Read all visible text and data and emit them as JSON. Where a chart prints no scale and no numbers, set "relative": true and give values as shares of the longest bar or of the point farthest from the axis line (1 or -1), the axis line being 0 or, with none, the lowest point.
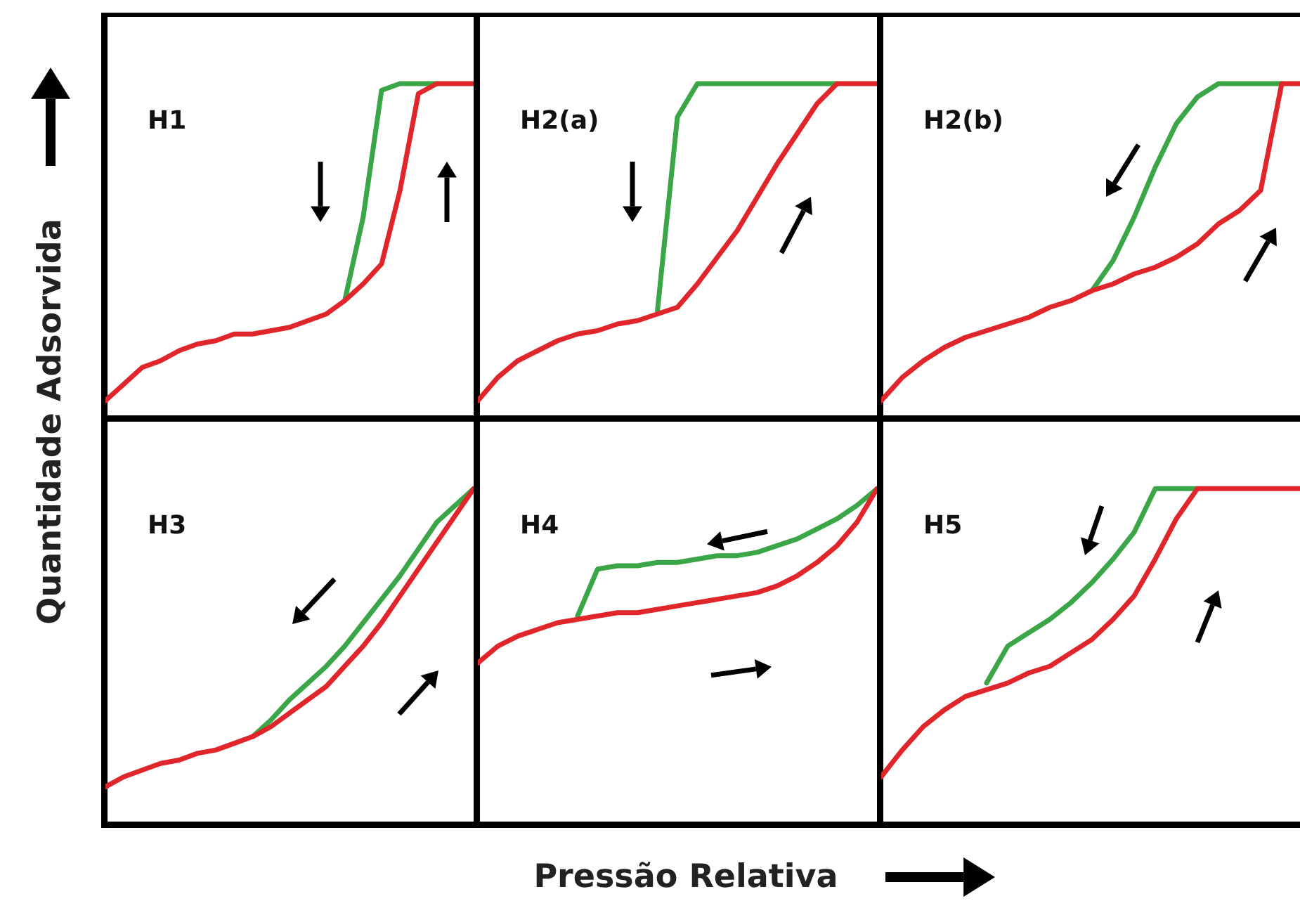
{
  "chart_data": [
    {
      "type": "line",
      "title": "H1",
      "ylabel": "Quantidade Adsorvida",
      "relative": true,
      "tick_labels": false,
      "categories": [
        null,
        null,
        null,
        null,
        null,
        null,
        null,
        null,
        null,
        null,
        null,
        null,
        null,
        null,
        null,
        null,
        null,
        null,
        null,
        null,
        null
      ],
      "series": [
        {
          "color": "#e0262b",
          "values": [
            0.05,
            0.1,
            0.15,
            0.17,
            0.2,
            0.22,
            0.23,
            0.25,
            0.25,
            0.26,
            0.27,
            0.29,
            0.31,
            0.35,
            0.4,
            0.46,
            0.68,
            0.97,
            1,
            1,
            1
          ]
        },
        {
          "color": "#3aa648",
          "values": [
            null,
            null,
            null,
            null,
            null,
            null,
            null,
            null,
            null,
            null,
            null,
            null,
            null,
            0.35,
            0.6,
            0.98,
            1,
            1,
            1,
            null,
            null
          ]
        }
      ]
    },
    {
      "type": "line",
      "title": "H2(a)",
      "relative": true,
      "tick_labels": false,
      "categories": [
        null,
        null,
        null,
        null,
        null,
        null,
        null,
        null,
        null,
        null,
        null,
        null,
        null,
        null,
        null,
        null,
        null,
        null,
        null,
        null,
        null
      ],
      "series": [
        {
          "color": "#e0262b",
          "values": [
            0.05,
            0.12,
            0.17,
            0.2,
            0.23,
            0.25,
            0.26,
            0.28,
            0.29,
            0.31,
            0.33,
            0.4,
            0.48,
            0.56,
            0.66,
            0.76,
            0.85,
            0.94,
            1,
            1,
            1
          ]
        },
        {
          "color": "#3aa648",
          "values": [
            null,
            null,
            null,
            null,
            null,
            null,
            null,
            null,
            null,
            0.32,
            0.9,
            1,
            1,
            1,
            1,
            1,
            1,
            1,
            1,
            null,
            null
          ]
        }
      ]
    },
    {
      "type": "line",
      "title": "H2(b)",
      "relative": true,
      "tick_labels": false,
      "categories": [
        null,
        null,
        null,
        null,
        null,
        null,
        null,
        null,
        null,
        null,
        null,
        null,
        null,
        null,
        null,
        null,
        null,
        null,
        null,
        null,
        null
      ],
      "series": [
        {
          "color": "#e0262b",
          "values": [
            0.05,
            0.12,
            0.17,
            0.21,
            0.24,
            0.26,
            0.28,
            0.3,
            0.33,
            0.35,
            0.38,
            0.4,
            0.43,
            0.45,
            0.48,
            0.52,
            0.58,
            0.62,
            0.68,
            1,
            1
          ]
        },
        {
          "color": "#3aa648",
          "values": [
            null,
            null,
            null,
            null,
            null,
            null,
            null,
            null,
            null,
            null,
            0.38,
            0.47,
            0.6,
            0.75,
            0.88,
            0.96,
            1,
            1,
            1,
            1,
            null
          ]
        }
      ]
    },
    {
      "type": "line",
      "title": "H3",
      "relative": true,
      "tick_labels": false,
      "categories": [
        null,
        null,
        null,
        null,
        null,
        null,
        null,
        null,
        null,
        null,
        null,
        null,
        null,
        null,
        null,
        null,
        null,
        null,
        null,
        null,
        null
      ],
      "series": [
        {
          "color": "#e0262b",
          "values": [
            0.11,
            0.14,
            0.16,
            0.18,
            0.19,
            0.21,
            0.22,
            0.24,
            0.26,
            0.29,
            0.33,
            0.37,
            0.41,
            0.47,
            0.53,
            0.6,
            0.68,
            0.76,
            0.84,
            0.92,
            1
          ]
        },
        {
          "color": "#3aa648",
          "values": [
            null,
            null,
            null,
            null,
            null,
            null,
            null,
            null,
            0.26,
            0.31,
            0.37,
            0.42,
            0.47,
            0.53,
            0.6,
            0.67,
            0.74,
            0.82,
            0.9,
            0.95,
            1
          ]
        }
      ]
    },
    {
      "type": "line",
      "title": "H4",
      "xlabel": "Pressão Relativa",
      "relative": true,
      "tick_labels": false,
      "categories": [
        null,
        null,
        null,
        null,
        null,
        null,
        null,
        null,
        null,
        null,
        null,
        null,
        null,
        null,
        null,
        null,
        null,
        null,
        null,
        null,
        null
      ],
      "series": [
        {
          "color": "#e0262b",
          "values": [
            0.48,
            0.53,
            0.56,
            0.58,
            0.6,
            0.61,
            0.62,
            0.63,
            0.63,
            0.64,
            0.65,
            0.66,
            0.67,
            0.68,
            0.69,
            0.71,
            0.74,
            0.78,
            0.83,
            0.9,
            1
          ]
        },
        {
          "color": "#3aa648",
          "values": [
            null,
            null,
            null,
            null,
            null,
            0.62,
            0.76,
            0.77,
            0.77,
            0.78,
            0.78,
            0.79,
            0.8,
            0.8,
            0.81,
            0.83,
            0.85,
            0.88,
            0.91,
            0.95,
            1
          ]
        }
      ]
    },
    {
      "type": "line",
      "title": "H5",
      "relative": true,
      "tick_labels": false,
      "categories": [
        null,
        null,
        null,
        null,
        null,
        null,
        null,
        null,
        null,
        null,
        null,
        null,
        null,
        null,
        null,
        null,
        null,
        null,
        null,
        null,
        null
      ],
      "series": [
        {
          "color": "#e0262b",
          "values": [
            0.14,
            0.22,
            0.29,
            0.34,
            0.38,
            0.4,
            0.42,
            0.45,
            0.47,
            0.51,
            0.55,
            0.61,
            0.68,
            0.79,
            0.91,
            1,
            1,
            1,
            1,
            1,
            1
          ]
        },
        {
          "color": "#3aa648",
          "values": [
            null,
            null,
            null,
            null,
            null,
            0.42,
            0.53,
            0.57,
            0.61,
            0.66,
            0.72,
            0.79,
            0.87,
            1,
            1,
            1,
            null,
            null,
            null,
            null,
            null
          ]
        }
      ]
    }
  ]
}
